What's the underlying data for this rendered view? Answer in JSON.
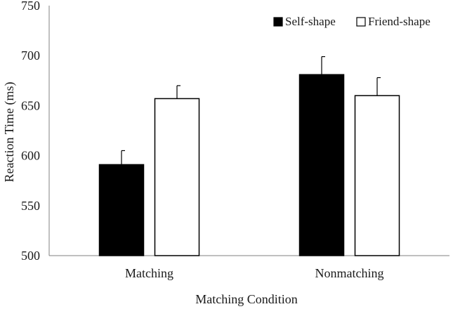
{
  "chart_data": {
    "type": "bar",
    "title": "",
    "xlabel": "Matching Condition",
    "ylabel": "Reaction Time (ms)",
    "categories": [
      "Matching",
      "Nonmatching"
    ],
    "ylim": [
      500,
      750
    ],
    "yticks": [
      500,
      550,
      600,
      650,
      700,
      750
    ],
    "grid": false,
    "legend": "top-right",
    "series": [
      {
        "name": "Self-shape",
        "values": [
          591,
          681
        ],
        "errors": [
          14,
          18
        ],
        "fill": "#000000"
      },
      {
        "name": "Friend-shape",
        "values": [
          657,
          660
        ],
        "errors": [
          13,
          18
        ],
        "fill": "#ffffff"
      }
    ]
  }
}
